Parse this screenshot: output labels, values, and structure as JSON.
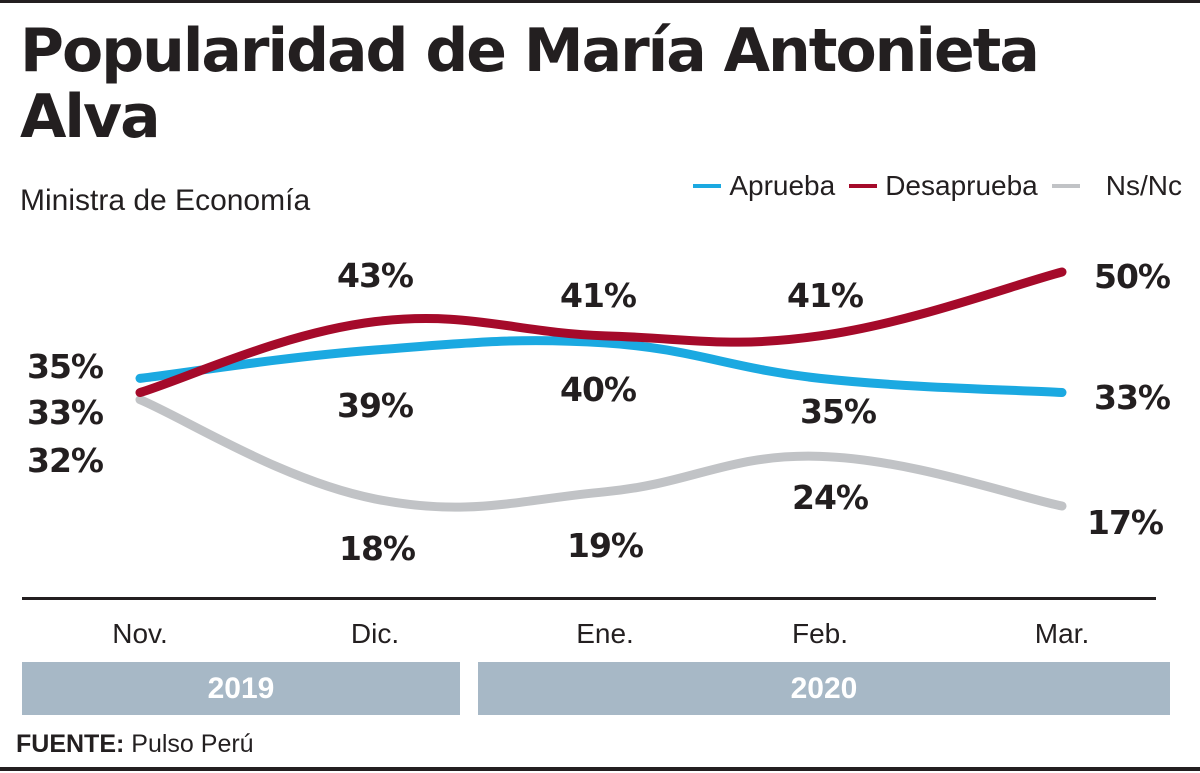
{
  "header": {
    "title": "Popularidad de María Antonieta Alva",
    "subtitle": "Ministra de Economía"
  },
  "legend": [
    {
      "label": "Aprueba",
      "color": "#1ba9e1"
    },
    {
      "label": "Desaprueba",
      "color": "#a50a2a"
    },
    {
      "label": "Ns/Nc",
      "color": "#c1c3c6"
    }
  ],
  "years": [
    {
      "label": "2019"
    },
    {
      "label": "2020"
    }
  ],
  "source": {
    "prefix": "FUENTE:",
    "text": "Pulso Perú"
  },
  "chart_data": {
    "type": "line",
    "title": "Popularidad de María Antonieta Alva",
    "subtitle": "Ministra de Economía",
    "categories": [
      "Nov.",
      "Dic.",
      "Ene.",
      "Feb.",
      "Mar."
    ],
    "category_years": [
      "2019",
      "2019",
      "2020",
      "2020",
      "2020"
    ],
    "series": [
      {
        "name": "Aprueba",
        "color": "#1ba9e1",
        "values": [
          35,
          39,
          40,
          35,
          33
        ],
        "labels": [
          "35%",
          "39%",
          "40%",
          "35%",
          "33%"
        ]
      },
      {
        "name": "Desaprueba",
        "color": "#a50a2a",
        "values": [
          33,
          43,
          41,
          41,
          50
        ],
        "labels": [
          "33%",
          "43%",
          "41%",
          "41%",
          "50%"
        ]
      },
      {
        "name": "Ns/Nc",
        "color": "#c1c3c6",
        "values": [
          32,
          18,
          19,
          24,
          17
        ],
        "labels": [
          "32%",
          "18%",
          "19%",
          "24%",
          "17%"
        ]
      }
    ],
    "xlabel": "",
    "ylabel": "",
    "grid": false,
    "legend_position": "top-right",
    "smooth": true
  }
}
